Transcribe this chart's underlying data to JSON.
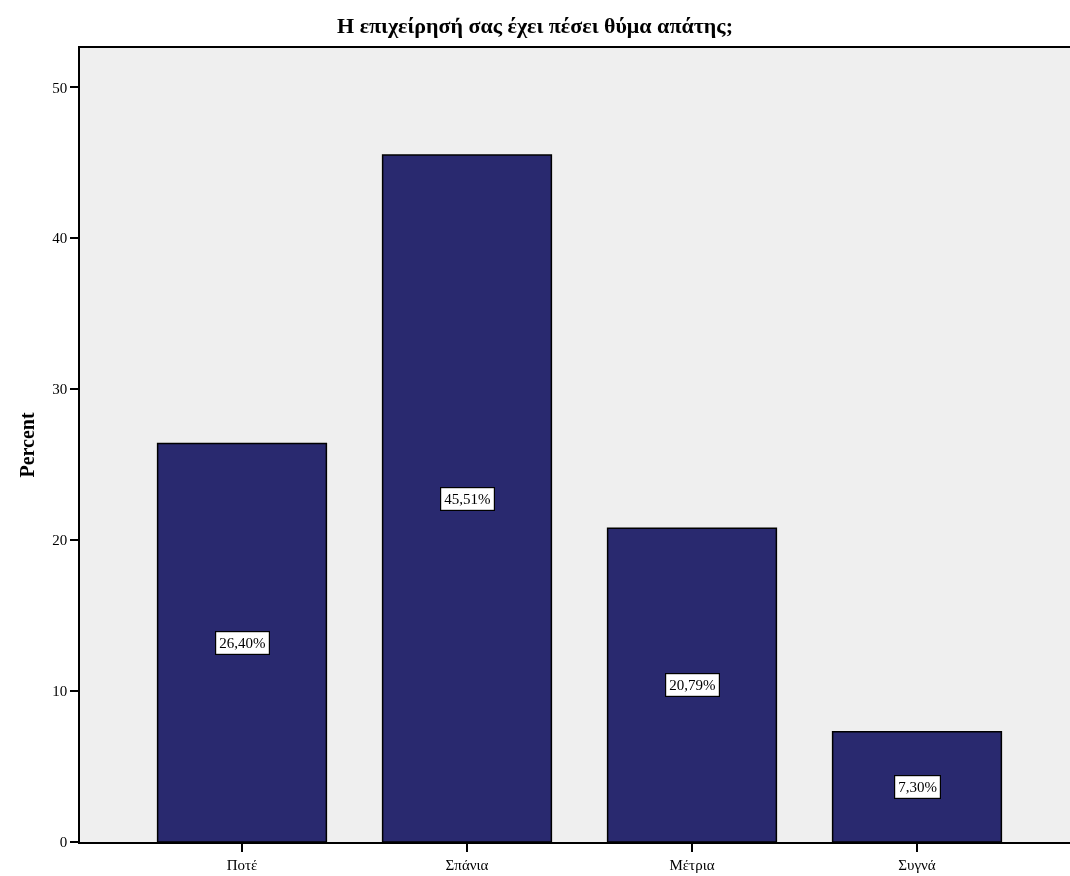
{
  "chart_data": {
    "type": "bar",
    "title": "Η επιχείρησή σας έχει πέσει θύμα απάτης;",
    "ylabel": "Percent",
    "categories": [
      "Ποτέ",
      "Σπάνια",
      "Μέτρια",
      "Συγνά"
    ],
    "values": [
      26.4,
      45.51,
      20.79,
      7.3
    ],
    "value_labels": [
      "26,40%",
      "45,51%",
      "20,79%",
      "7,30%"
    ],
    "color": "#29296f",
    "ylim": [
      0,
      52.6
    ],
    "yticks": [
      0,
      10,
      20,
      30,
      40,
      50
    ]
  }
}
